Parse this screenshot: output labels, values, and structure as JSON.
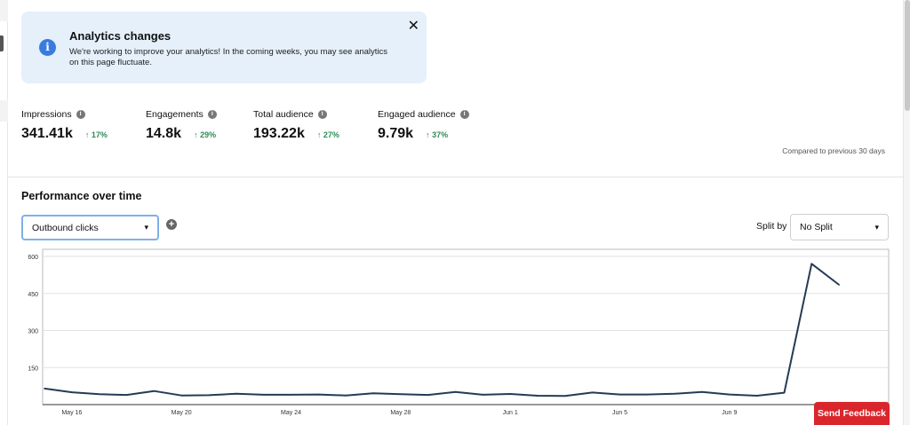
{
  "banner": {
    "title": "Analytics changes",
    "body": "We're working to improve your analytics! In the coming weeks, you may see analytics on this page fluctuate.",
    "close_label": "✕",
    "info_glyph": "i"
  },
  "metrics": [
    {
      "label": "Impressions",
      "value": "341.41k",
      "delta": "17%"
    },
    {
      "label": "Engagements",
      "value": "14.8k",
      "delta": "29%"
    },
    {
      "label": "Total audience",
      "value": "193.22k",
      "delta": "27%"
    },
    {
      "label": "Engaged audience",
      "value": "9.79k",
      "delta": "37%"
    }
  ],
  "delta_glyph": "↑",
  "info_dot_glyph": "i",
  "compared_text": "Compared to previous 30 days",
  "performance": {
    "title": "Performance over time",
    "metric_select": "Outbound clicks",
    "add_glyph": "+",
    "split_label": "Split by",
    "split_select": "No Split",
    "chevron": "⌄"
  },
  "feedback_label": "Send Feedback",
  "colors": {
    "accent_blue": "#3a7be0",
    "positive": "#2e8b57",
    "line": "#243b55",
    "feedback": "#d9262c"
  },
  "chart_data": {
    "type": "line",
    "x": [
      "May 15",
      "May 16",
      "May 17",
      "May 18",
      "May 19",
      "May 20",
      "May 21",
      "May 22",
      "May 23",
      "May 24",
      "May 25",
      "May 26",
      "May 27",
      "May 28",
      "May 29",
      "May 30",
      "May 31",
      "Jun 1",
      "Jun 2",
      "Jun 3",
      "Jun 4",
      "Jun 5",
      "Jun 6",
      "Jun 7",
      "Jun 8",
      "Jun 9",
      "Jun 10",
      "Jun 11",
      "Jun 12",
      "Jun 13",
      "Jun 14"
    ],
    "x_tick_labels": [
      "May 16",
      "May 20",
      "May 24",
      "May 28",
      "Jun 1",
      "Jun 5",
      "Jun 9"
    ],
    "series": [
      {
        "values": [
          65,
          50,
          42,
          39,
          55,
          37,
          38,
          44,
          40,
          40,
          41,
          37,
          46,
          42,
          39,
          51,
          40,
          43,
          36,
          35,
          49,
          41,
          41,
          44,
          51,
          41,
          36,
          48,
          570,
          485,
          null
        ]
      }
    ],
    "y_ticks": [
      150,
      300,
      450,
      600
    ],
    "ylim": [
      0,
      600
    ],
    "grid": true
  }
}
